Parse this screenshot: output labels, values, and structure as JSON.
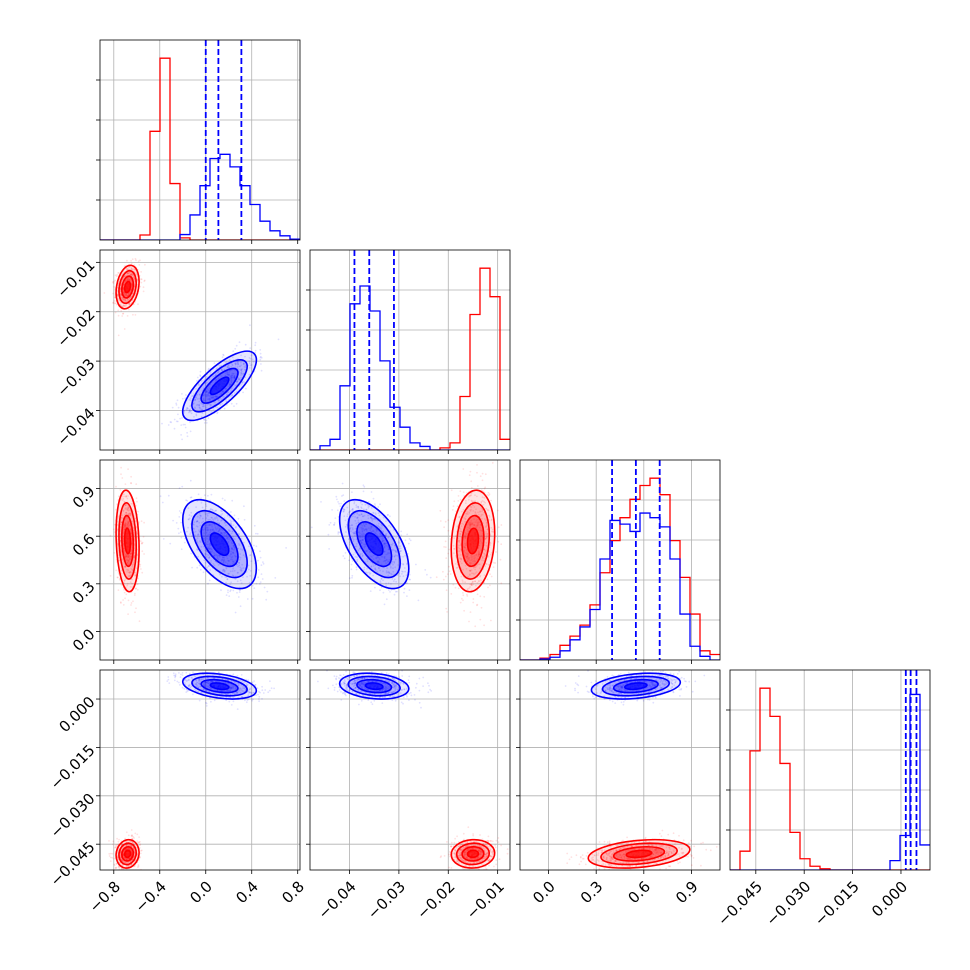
{
  "chart_data": {
    "type": "corner",
    "colors": {
      "a": "#ff0000",
      "b": "#0000ff"
    },
    "grid": true,
    "params": [
      {
        "range": [
          -0.92,
          0.82
        ],
        "ticks": [
          -0.8,
          -0.4,
          0.0,
          0.4,
          0.8
        ],
        "tick_labels": [
          "−0.8",
          "−0.4",
          "0.0",
          "0.4",
          "0.8"
        ]
      },
      {
        "range": [
          -0.048,
          -0.0075
        ],
        "ticks": [
          -0.04,
          -0.03,
          -0.02,
          -0.01
        ],
        "tick_labels": [
          "−0.04",
          "−0.03",
          "−0.02",
          "−0.01"
        ]
      },
      {
        "range": [
          -0.18,
          1.08
        ],
        "ticks": [
          0.0,
          0.3,
          0.6,
          0.9
        ],
        "tick_labels": [
          "0.0",
          "0.3",
          "0.6",
          "0.9"
        ]
      },
      {
        "range": [
          -0.053,
          0.009
        ],
        "ticks": [
          -0.045,
          -0.03,
          -0.015,
          0.0
        ],
        "tick_labels": [
          "−0.045",
          "−0.030",
          "−0.015",
          "0.000"
        ]
      }
    ],
    "series": [
      {
        "key": "a",
        "mean": [
          -0.68,
          -0.015,
          0.57,
          -0.048
        ],
        "sd": [
          0.05,
          0.0022,
          0.16,
          0.0022
        ],
        "corr": [
          [
            0,
            1,
            0.25
          ],
          [
            0,
            2,
            -0.15
          ],
          [
            0,
            3,
            0.1
          ],
          [
            1,
            2,
            0.15
          ],
          [
            1,
            3,
            0.05
          ],
          [
            2,
            3,
            0.3
          ]
        ],
        "hist": [
          {
            "edges": [
              -0.92,
              0.82
            ],
            "bins": 20,
            "values": [
              0,
              0,
              0,
              0,
              0.12,
              2.6,
              4.35,
              1.35,
              0.05,
              0,
              0,
              0,
              0,
              0,
              0,
              0,
              0,
              0,
              0,
              0
            ]
          },
          {
            "edges": [
              -0.048,
              -0.0075
            ],
            "bins": 20,
            "values": [
              0,
              0,
              0,
              0,
              0,
              0,
              0,
              0,
              0,
              0,
              0,
              0,
              0,
              0.03,
              0.1,
              0.75,
              1.9,
              2.55,
              2.15,
              0.15
            ]
          },
          {
            "edges": [
              -0.18,
              1.08
            ],
            "bins": 20,
            "values": [
              0,
              0,
              0.02,
              0.06,
              0.16,
              0.26,
              0.38,
              0.6,
              0.95,
              1.3,
              1.55,
              1.75,
              1.9,
              1.98,
              1.8,
              1.3,
              0.9,
              0.5,
              0.1,
              0.06
            ]
          },
          {
            "edges": [
              -0.053,
              0.009
            ],
            "bins": 20,
            "values": [
              0,
              0.3,
              1.9,
              2.9,
              2.45,
              1.7,
              0.6,
              0.18,
              0.06,
              0.02,
              0,
              0,
              0,
              0,
              0,
              0,
              0,
              0,
              0,
              0
            ]
          }
        ]
      },
      {
        "key": "b",
        "mean": [
          0.12,
          -0.035,
          0.55,
          0.004
        ],
        "sd": [
          0.16,
          0.0035,
          0.14,
          0.002
        ],
        "corr": [
          [
            0,
            1,
            0.75
          ],
          [
            0,
            2,
            -0.55
          ],
          [
            0,
            3,
            -0.35
          ],
          [
            1,
            2,
            -0.55
          ],
          [
            1,
            3,
            -0.2
          ],
          [
            2,
            3,
            0.3
          ]
        ],
        "quantiles": [
          [
            0.0,
            0.11,
            0.31
          ],
          [
            -0.039,
            -0.036,
            -0.031
          ],
          [
            0.4,
            0.55,
            0.7
          ],
          [
            0.0015,
            0.003,
            0.0048
          ]
        ],
        "hist": [
          {
            "edges": [
              -0.92,
              0.82
            ],
            "bins": 20,
            "values": [
              0,
              0,
              0,
              0,
              0,
              0,
              0,
              0,
              0.13,
              0.6,
              1.3,
              1.95,
              2.05,
              1.75,
              1.3,
              0.85,
              0.45,
              0.22,
              0.1,
              0.02
            ]
          },
          {
            "edges": [
              -0.048,
              -0.0075
            ],
            "bins": 20,
            "values": [
              0,
              0.06,
              0.15,
              0.9,
              2.05,
              2.3,
              1.95,
              1.25,
              0.6,
              0.32,
              0.1,
              0.05,
              0,
              0,
              0,
              0,
              0,
              0,
              0,
              0
            ]
          },
          {
            "edges": [
              -0.18,
              1.08
            ],
            "bins": 20,
            "values": [
              0,
              0,
              0.01,
              0.03,
              0.1,
              0.22,
              0.36,
              0.55,
              1.1,
              1.52,
              1.48,
              1.4,
              1.6,
              1.55,
              1.45,
              1.1,
              0.5,
              0.15,
              0.04,
              0
            ]
          },
          {
            "edges": [
              -0.053,
              0.009
            ],
            "bins": 20,
            "values": [
              0,
              0,
              0,
              0,
              0,
              0,
              0,
              0,
              0,
              0,
              0,
              0,
              0,
              0,
              0,
              0,
              0.15,
              0.55,
              2.8,
              0.4
            ]
          }
        ]
      }
    ]
  }
}
